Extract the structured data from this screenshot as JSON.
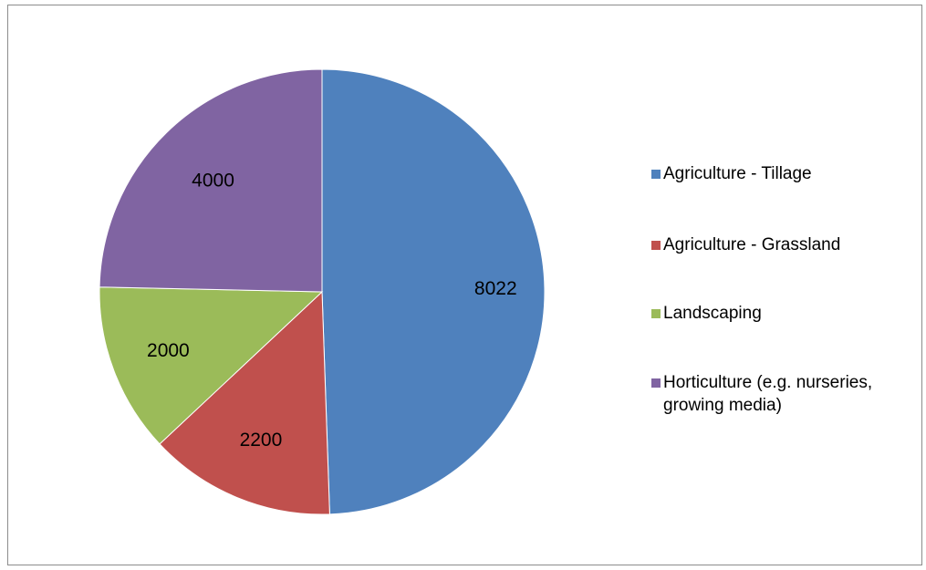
{
  "chart_data": {
    "type": "pie",
    "title": "",
    "categories": [
      "Agriculture - Tillage",
      "Agriculture - Grassland",
      "Landscaping",
      "Horticulture (e.g. nurseries, growing media)"
    ],
    "values": [
      8022,
      2200,
      2000,
      4000
    ],
    "colors": [
      "#4f81bd",
      "#c0504d",
      "#9bbb59",
      "#8064a2"
    ],
    "start_angle": "12 o'clock",
    "direction": "clockwise",
    "data_labels": [
      "8022",
      "2200",
      "2000",
      "4000"
    ],
    "legend": {
      "position": "right",
      "entries": [
        "Agriculture - Tillage",
        "Agriculture - Grassland",
        "Landscaping",
        "Horticulture (e.g. nurseries, growing media)"
      ]
    }
  }
}
